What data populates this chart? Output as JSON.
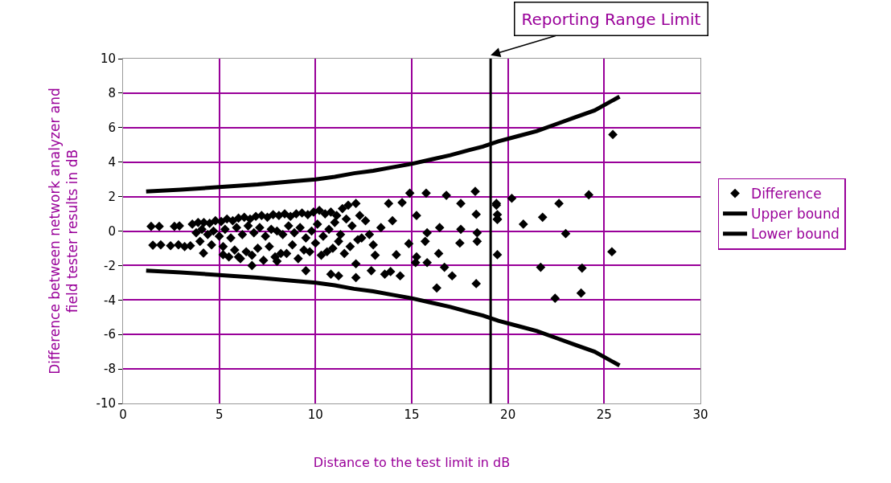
{
  "chart_data": {
    "type": "scatter",
    "xlabel": "Distance to the test limit in dB",
    "ylabel": "Difference between network analyzer and\nfield tester results in dB",
    "xlim": [
      0,
      30
    ],
    "ylim": [
      -10,
      10
    ],
    "xticks": [
      0,
      5,
      10,
      15,
      20,
      25,
      30
    ],
    "yticks": [
      -10,
      -8,
      -6,
      -4,
      -2,
      0,
      2,
      4,
      6,
      8,
      10
    ],
    "grid": true,
    "legend": "right",
    "ref_lines": [
      {
        "axis": "x",
        "value": 19.1,
        "label": "Reporting Range Limit",
        "color": "#000000"
      }
    ],
    "series": [
      {
        "name": "Difference",
        "marker": "diamond",
        "color": "#000000",
        "x": [
          1.46,
          1.88,
          2.67,
          2.93,
          1.55,
          1.96,
          2.47,
          2.88,
          3.2,
          3.5,
          3.6,
          3.9,
          4.2,
          4.5,
          4.8,
          5.1,
          5.4,
          5.7,
          6.0,
          6.3,
          6.6,
          6.9,
          7.2,
          7.5,
          7.8,
          8.1,
          8.4,
          8.7,
          9.0,
          9.3,
          9.6,
          9.9,
          10.2,
          10.5,
          10.8,
          11.1,
          11.4,
          11.7,
          3.8,
          4.1,
          4.4,
          4.7,
          5.0,
          5.3,
          5.6,
          5.9,
          6.2,
          6.5,
          6.8,
          7.1,
          7.4,
          7.7,
          8.0,
          8.3,
          8.6,
          8.9,
          9.2,
          9.5,
          9.8,
          10.1,
          10.4,
          10.7,
          11.0,
          11.3,
          11.6,
          11.9,
          12.3,
          12.6,
          4.0,
          4.6,
          5.2,
          5.8,
          6.4,
          7.0,
          7.6,
          8.2,
          8.8,
          9.4,
          10.0,
          10.6,
          11.2,
          11.8,
          12.4,
          13.0,
          5.5,
          6.1,
          6.7,
          7.3,
          7.9,
          8.5,
          9.1,
          9.7,
          10.3,
          10.9,
          11.5,
          12.2,
          12.8,
          13.4,
          14.0,
          4.18,
          5.2,
          6.0,
          6.7,
          8.0,
          9.5,
          14.9,
          15.75,
          16.8,
          18.3,
          12.1,
          15.25,
          17.55,
          18.35,
          19.4,
          19.45,
          16.45,
          15.8,
          17.55,
          18.4,
          18.4,
          17.5,
          14.85,
          15.7,
          14.2,
          13.1,
          16.4,
          15.25,
          15.2,
          15.8,
          16.7,
          12.1,
          12.9,
          10.8,
          11.2,
          12.1,
          13.6,
          13.9,
          14.4,
          17.1,
          16.3,
          18.35,
          19.45,
          13.8,
          14.5,
          25.45,
          20.2,
          24.2,
          22.65,
          21.8,
          20.8,
          23.0,
          19.4,
          19.45,
          19.45,
          25.4,
          21.7,
          23.85,
          22.45,
          23.8
        ],
        "values": [
          0.27,
          0.27,
          0.27,
          0.3,
          -0.82,
          -0.8,
          -0.85,
          -0.8,
          -0.9,
          -0.85,
          0.4,
          0.5,
          0.5,
          0.45,
          0.6,
          0.55,
          0.7,
          0.6,
          0.75,
          0.8,
          0.7,
          0.85,
          0.9,
          0.8,
          0.95,
          0.9,
          1.0,
          0.85,
          1.0,
          1.05,
          0.95,
          1.1,
          1.2,
          1.0,
          1.1,
          0.9,
          1.3,
          1.5,
          -0.1,
          0.1,
          -0.2,
          0.0,
          -0.3,
          0.1,
          -0.4,
          0.2,
          -0.2,
          0.3,
          -0.1,
          0.2,
          -0.3,
          0.1,
          0.0,
          -0.2,
          0.3,
          -0.1,
          0.2,
          -0.4,
          0.0,
          0.4,
          -0.3,
          0.1,
          0.5,
          -0.2,
          0.7,
          0.3,
          0.9,
          0.6,
          -0.6,
          -0.8,
          -0.9,
          -1.1,
          -1.2,
          -1.0,
          -0.9,
          -1.3,
          -0.8,
          -1.1,
          -0.7,
          -1.2,
          -0.6,
          -0.9,
          -0.4,
          -0.8,
          -1.5,
          -1.6,
          -1.4,
          -1.7,
          -1.5,
          -1.3,
          -1.6,
          -1.2,
          -1.4,
          -1.0,
          -1.3,
          -0.5,
          -0.2,
          0.2,
          0.6,
          -1.28,
          -1.37,
          -1.5,
          -2.0,
          -1.75,
          -2.3,
          2.2,
          2.2,
          2.07,
          2.3,
          1.6,
          0.9,
          1.6,
          0.97,
          1.6,
          0.7,
          0.2,
          -0.1,
          0.1,
          -0.1,
          -0.6,
          -0.7,
          -0.73,
          -0.6,
          -1.37,
          -1.4,
          -1.3,
          -1.5,
          -1.83,
          -1.83,
          -2.1,
          -1.9,
          -2.3,
          -2.5,
          -2.6,
          -2.7,
          -2.5,
          -2.35,
          -2.6,
          -2.6,
          -3.3,
          -3.05,
          -1.37,
          1.6,
          1.65,
          5.6,
          1.9,
          2.1,
          1.6,
          0.8,
          0.4,
          -0.15,
          1.5,
          0.95,
          0.67,
          -1.2,
          -2.1,
          -2.15,
          -3.9,
          -3.6
        ]
      },
      {
        "name": "Upper bound",
        "type": "line",
        "color": "#000000",
        "x": [
          1.2,
          3,
          5,
          7,
          9,
          10,
          11,
          12,
          13,
          14,
          15,
          16,
          17,
          18,
          18.7,
          19.5,
          20.5,
          21.5,
          22.5,
          23.5,
          24.5,
          25.8
        ],
        "values": [
          2.3,
          2.4,
          2.55,
          2.7,
          2.9,
          3.0,
          3.15,
          3.35,
          3.5,
          3.7,
          3.9,
          4.15,
          4.4,
          4.7,
          4.9,
          5.2,
          5.5,
          5.8,
          6.2,
          6.6,
          7.0,
          7.8
        ]
      },
      {
        "name": "Lower bound",
        "type": "line",
        "color": "#000000",
        "x": [
          1.2,
          3,
          5,
          7,
          9,
          10,
          11,
          12,
          13,
          14,
          15,
          16,
          17,
          18,
          18.7,
          19.5,
          20.5,
          21.5,
          22.5,
          23.5,
          24.5,
          25.8
        ],
        "values": [
          -2.3,
          -2.4,
          -2.55,
          -2.7,
          -2.9,
          -3.0,
          -3.15,
          -3.35,
          -3.5,
          -3.7,
          -3.9,
          -4.15,
          -4.4,
          -4.7,
          -4.9,
          -5.2,
          -5.5,
          -5.8,
          -6.2,
          -6.6,
          -7.0,
          -7.8
        ]
      }
    ]
  }
}
